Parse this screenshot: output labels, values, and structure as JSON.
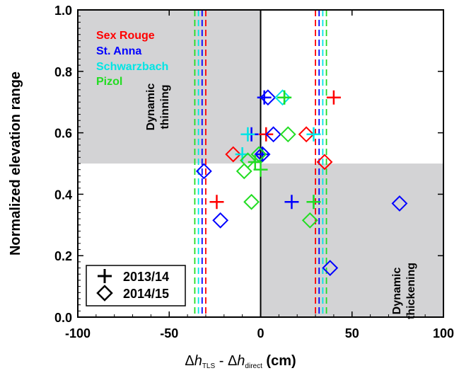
{
  "chart_data": {
    "type": "scatter",
    "xlim": [
      -100,
      100
    ],
    "ylim": [
      0.0,
      1.0
    ],
    "xticks": [
      "-100",
      "-50",
      "0",
      "50",
      "100"
    ],
    "xtick_values": [
      -100,
      -50,
      0,
      50,
      100
    ],
    "yticks": [
      "0.0",
      "0.2",
      "0.4",
      "0.6",
      "0.8",
      "1.0"
    ],
    "ytick_values": [
      0.0,
      0.2,
      0.4,
      0.6,
      0.8,
      1.0
    ],
    "ylabel": "Normalized elevation range",
    "xlabel": {
      "delta": "Δ",
      "h": "h",
      "sub1": "TLS",
      "minus": " - ",
      "sub2": "direct",
      "unit": " (cm)"
    },
    "regions": [
      {
        "label_line1": "Dynamic",
        "label_line2": "thinning",
        "x": [
          -100,
          0
        ],
        "y": [
          0.5,
          1.0
        ],
        "color": "#d3d3d5"
      },
      {
        "label_line1": "Dynamic",
        "label_line2": "thickening",
        "x": [
          0,
          100
        ],
        "y": [
          0.0,
          0.5
        ],
        "color": "#d3d3d5"
      }
    ],
    "zero_line_x": 0,
    "series": [
      {
        "name": "Sex Rouge",
        "color": "#ff0000",
        "threshold_x": [
          -30,
          30
        ],
        "points_2013_14": [
          [
            -24,
            0.375
          ],
          [
            3,
            0.595
          ],
          [
            40,
            0.715
          ]
        ],
        "points_2014_15": [
          [
            -15,
            0.53
          ],
          [
            25,
            0.595
          ],
          [
            35,
            0.505
          ]
        ]
      },
      {
        "name": "St. Anna",
        "color": "#0000ff",
        "threshold_x": [
          -32,
          32
        ],
        "points_2013_14": [
          [
            -5,
            0.595
          ],
          [
            2,
            0.715
          ],
          [
            1,
            0.53
          ],
          [
            17,
            0.375
          ]
        ],
        "points_2014_15": [
          [
            -31,
            0.475
          ],
          [
            -22,
            0.315
          ],
          [
            1,
            0.53
          ],
          [
            4,
            0.715
          ],
          [
            7,
            0.595
          ],
          [
            38,
            0.16
          ],
          [
            76,
            0.37
          ]
        ]
      },
      {
        "name": "Schwarzbach",
        "color": "#00e5e5",
        "threshold_x": [
          -34,
          34
        ],
        "points_2013_14": [
          [
            -7,
            0.595
          ],
          [
            -10,
            0.53
          ],
          [
            13,
            0.715
          ],
          [
            29,
            0.595
          ],
          [
            29,
            0.375
          ]
        ],
        "points_2014_15": [
          [
            -1,
            0.53
          ],
          [
            12,
            0.715
          ]
        ]
      },
      {
        "name": "Pizol",
        "color": "#22dd22",
        "threshold_x": [
          -36,
          36
        ],
        "points_2013_14": [
          [
            -3,
            0.505
          ],
          [
            0,
            0.48
          ],
          [
            13,
            0.715
          ],
          [
            29,
            0.375
          ]
        ],
        "points_2014_15": [
          [
            -9,
            0.475
          ],
          [
            -7,
            0.51
          ],
          [
            -5,
            0.375
          ],
          [
            -1,
            0.53
          ],
          [
            15,
            0.595
          ],
          [
            27,
            0.315
          ]
        ]
      }
    ],
    "legend_series": {
      "placement": "top-left"
    },
    "legend_markers": {
      "placement": "bottom-left",
      "plus": "2013/14",
      "diamond": "2014/15"
    }
  }
}
